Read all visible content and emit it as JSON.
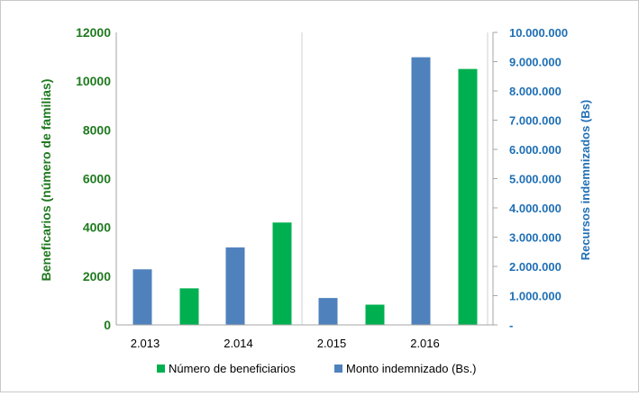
{
  "chart_data": {
    "type": "bar",
    "categories": [
      "2.013",
      "2.014",
      "2.015",
      "2.016"
    ],
    "ylabel_left": "Beneficarios (número de familias)",
    "ylabel_right": "Recursos indemnizados (Bs)",
    "ylim_left": [
      0,
      12000
    ],
    "ylim_right": [
      0,
      10000000
    ],
    "yticks_left": [
      "0",
      "2000",
      "4000",
      "6000",
      "8000",
      "10000",
      "12000"
    ],
    "yticks_right": [
      "-",
      "1.000.000",
      "2.000.000",
      "3.000.000",
      "4.000.000",
      "5.000.000",
      "6.000.000",
      "7.000.000",
      "8.000.000",
      "9.000.000",
      "10.000.000"
    ],
    "grid": "vertical category gridlines",
    "legend_position": "bottom",
    "series": [
      {
        "name": "Número de beneficiarios",
        "axis": "left",
        "color": "#00b050",
        "values": [
          1500,
          4200,
          830,
          10500
        ]
      },
      {
        "name": "Monto indemnizado  (Bs.)",
        "axis": "right",
        "color": "#4f81bd",
        "values": [
          1900000,
          2650000,
          920000,
          9150000
        ]
      }
    ]
  }
}
